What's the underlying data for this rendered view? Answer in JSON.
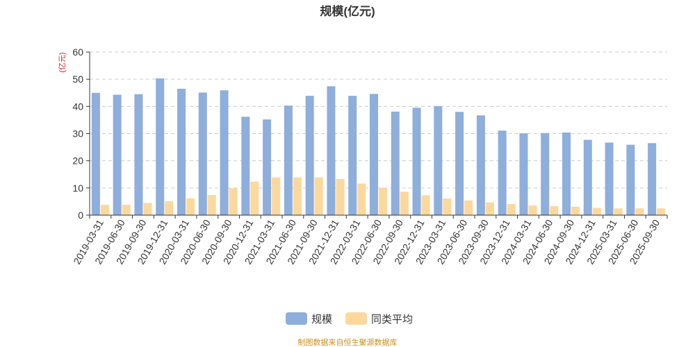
{
  "chart_data": {
    "type": "bar",
    "title": "规模(亿元)",
    "ylabel": "(亿元)",
    "xlabel": "",
    "ylim": [
      0,
      60
    ],
    "yticks": [
      0,
      10,
      20,
      30,
      40,
      50,
      60
    ],
    "grid": true,
    "legend_position": "bottom",
    "categories": [
      "2019-03-31",
      "2019-06-30",
      "2019-09-30",
      "2019-12-31",
      "2020-03-31",
      "2020-06-30",
      "2020-09-30",
      "2020-12-31",
      "2021-03-31",
      "2021-06-30",
      "2021-09-30",
      "2021-12-31",
      "2022-03-31",
      "2022-06-30",
      "2022-09-30",
      "2022-12-31",
      "2023-03-31",
      "2023-06-30",
      "2023-09-30",
      "2023-12-31",
      "2024-03-31",
      "2024-06-30",
      "2024-09-30",
      "2024-12-31",
      "2025-03-31",
      "2025-06-30",
      "2025-09-30"
    ],
    "series": [
      {
        "name": "规模",
        "color": "#8eaedc",
        "values": [
          45.0,
          44.3,
          44.5,
          50.3,
          46.5,
          45.1,
          45.9,
          36.2,
          35.2,
          40.3,
          43.9,
          47.4,
          43.9,
          44.6,
          38.1,
          39.5,
          40.1,
          38.0,
          36.7,
          31.1,
          30.1,
          30.2,
          30.4,
          27.7,
          26.7,
          25.9,
          26.5
        ]
      },
      {
        "name": "同类平均",
        "color": "#fdd89d",
        "values": [
          3.8,
          3.8,
          4.5,
          5.1,
          6.2,
          7.4,
          9.9,
          12.3,
          13.9,
          13.9,
          13.9,
          13.3,
          11.6,
          10.1,
          8.6,
          7.3,
          6.1,
          5.4,
          4.7,
          4.1,
          3.6,
          3.3,
          3.1,
          2.7,
          2.5,
          2.5,
          2.5
        ]
      }
    ]
  },
  "footer": {
    "source": "制图数据来自恒生聚源数据库"
  }
}
